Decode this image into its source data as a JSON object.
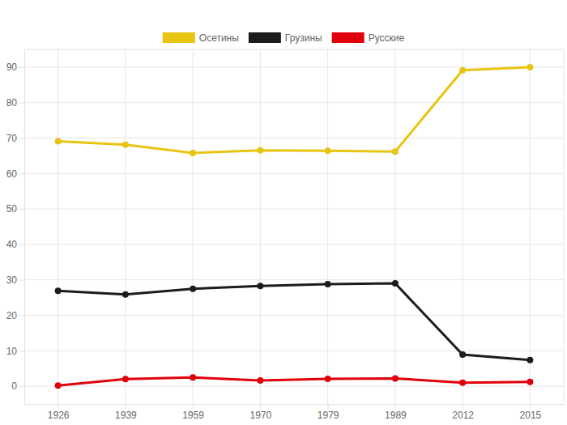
{
  "chart_data": {
    "type": "line",
    "categories": [
      "1926",
      "1939",
      "1959",
      "1970",
      "1979",
      "1989",
      "2012",
      "2015"
    ],
    "series": [
      {
        "name": "Осетины",
        "color": "#e8c413",
        "values": [
          69.1,
          68.1,
          65.8,
          66.5,
          66.4,
          66.2,
          89.1,
          90.0
        ]
      },
      {
        "name": "Грузины",
        "color": "#1c1c1c",
        "values": [
          26.9,
          25.9,
          27.5,
          28.3,
          28.8,
          29.0,
          8.9,
          7.4
        ]
      },
      {
        "name": "Русские",
        "color": "#e0000b",
        "values": [
          0.2,
          2.0,
          2.5,
          1.6,
          2.1,
          2.2,
          1.0,
          1.2
        ]
      }
    ],
    "ylim": [
      -5,
      95
    ],
    "yticks": [
      0,
      10,
      20,
      30,
      40,
      50,
      60,
      70,
      80,
      90
    ],
    "grid": true,
    "legend": "top",
    "marker": "circle"
  }
}
